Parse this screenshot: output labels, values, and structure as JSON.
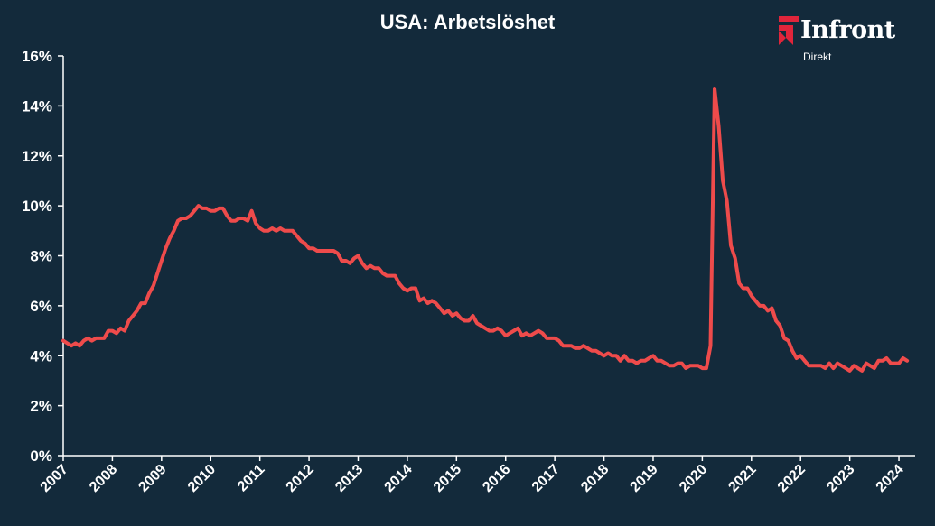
{
  "brand": {
    "name": "Infront",
    "sub": "Direkt",
    "accent_color": "#e0253b",
    "icon": "infront-logo-icon"
  },
  "colors": {
    "background": "#132a3b",
    "line": "#ee4b4b",
    "axis": "#ffffff",
    "text": "#ffffff"
  },
  "chart_data": {
    "type": "line",
    "title": "USA: Arbetslöshet",
    "xlabel": "",
    "ylabel": "",
    "ylim": [
      0,
      16
    ],
    "yticks": [
      0,
      2,
      4,
      6,
      8,
      10,
      12,
      14,
      16
    ],
    "ytick_labels": [
      "0%",
      "2%",
      "4%",
      "6%",
      "8%",
      "10%",
      "12%",
      "14%",
      "16%"
    ],
    "xlim": [
      2007.0,
      2024.33
    ],
    "xticks": [
      2007,
      2008,
      2009,
      2010,
      2011,
      2012,
      2013,
      2014,
      2015,
      2016,
      2017,
      2018,
      2019,
      2020,
      2021,
      2022,
      2023,
      2024
    ],
    "xtick_labels": [
      "2007",
      "2008",
      "2009",
      "2010",
      "2011",
      "2012",
      "2013",
      "2014",
      "2015",
      "2016",
      "2017",
      "2018",
      "2019",
      "2020",
      "2021",
      "2022",
      "2023",
      "2024"
    ],
    "grid": false,
    "legend": "none",
    "series": [
      {
        "start": "2007-01",
        "frequency": "monthly",
        "values": [
          4.6,
          4.5,
          4.4,
          4.5,
          4.4,
          4.6,
          4.7,
          4.6,
          4.7,
          4.7,
          4.7,
          5.0,
          5.0,
          4.9,
          5.1,
          5.0,
          5.4,
          5.6,
          5.8,
          6.1,
          6.1,
          6.5,
          6.8,
          7.3,
          7.8,
          8.3,
          8.7,
          9.0,
          9.4,
          9.5,
          9.5,
          9.6,
          9.8,
          10.0,
          9.9,
          9.9,
          9.8,
          9.8,
          9.9,
          9.9,
          9.6,
          9.4,
          9.4,
          9.5,
          9.5,
          9.4,
          9.8,
          9.3,
          9.1,
          9.0,
          9.0,
          9.1,
          9.0,
          9.1,
          9.0,
          9.0,
          9.0,
          8.8,
          8.6,
          8.5,
          8.3,
          8.3,
          8.2,
          8.2,
          8.2,
          8.2,
          8.2,
          8.1,
          7.8,
          7.8,
          7.7,
          7.9,
          8.0,
          7.7,
          7.5,
          7.6,
          7.5,
          7.5,
          7.3,
          7.2,
          7.2,
          7.2,
          6.9,
          6.7,
          6.6,
          6.7,
          6.7,
          6.2,
          6.3,
          6.1,
          6.2,
          6.1,
          5.9,
          5.7,
          5.8,
          5.6,
          5.7,
          5.5,
          5.4,
          5.4,
          5.6,
          5.3,
          5.2,
          5.1,
          5.0,
          5.0,
          5.1,
          5.0,
          4.8,
          4.9,
          5.0,
          5.1,
          4.8,
          4.9,
          4.8,
          4.9,
          5.0,
          4.9,
          4.7,
          4.7,
          4.7,
          4.6,
          4.4,
          4.4,
          4.4,
          4.3,
          4.3,
          4.4,
          4.3,
          4.2,
          4.2,
          4.1,
          4.0,
          4.1,
          4.0,
          4.0,
          3.8,
          4.0,
          3.8,
          3.8,
          3.7,
          3.8,
          3.8,
          3.9,
          4.0,
          3.8,
          3.8,
          3.7,
          3.6,
          3.6,
          3.7,
          3.7,
          3.5,
          3.6,
          3.6,
          3.6,
          3.5,
          3.5,
          4.4,
          14.7,
          13.2,
          11.0,
          10.2,
          8.4,
          7.9,
          6.9,
          6.7,
          6.7,
          6.4,
          6.2,
          6.0,
          6.0,
          5.8,
          5.9,
          5.4,
          5.2,
          4.7,
          4.6,
          4.2,
          3.9,
          4.0,
          3.8,
          3.6,
          3.6,
          3.6,
          3.6,
          3.5,
          3.7,
          3.5,
          3.7,
          3.6,
          3.5,
          3.4,
          3.6,
          3.5,
          3.4,
          3.7,
          3.6,
          3.5,
          3.8,
          3.8,
          3.9,
          3.7,
          3.7,
          3.7,
          3.9,
          3.8
        ]
      }
    ]
  }
}
